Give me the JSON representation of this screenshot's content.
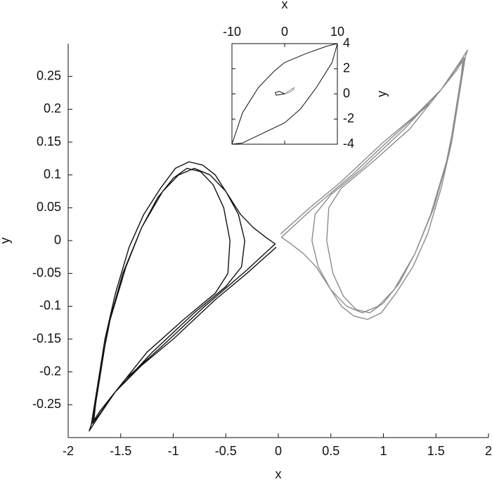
{
  "chart_data": [
    {
      "type": "line",
      "x_label": "x",
      "y_label": "y",
      "xlim": [
        -2,
        2
      ],
      "xticks": [
        -2,
        -1.5,
        -1,
        -0.5,
        0,
        0.5,
        1,
        1.5,
        2
      ],
      "ylim": [
        -0.3,
        0.3
      ],
      "yticks": [
        -0.25,
        -0.2,
        -0.15,
        -0.1,
        -0.05,
        0,
        0.05,
        0.1,
        0.15,
        0.2,
        0.25
      ],
      "series": [
        {
          "color": "#111111",
          "x": [
            -0.02,
            -0.3,
            -0.6,
            -1.0,
            -1.3,
            -1.55,
            -1.72,
            -1.8,
            -1.78,
            -1.72,
            -1.65,
            -1.55,
            -1.42,
            -1.28,
            -1.12,
            -0.98,
            -0.85,
            -0.72,
            -0.6,
            -0.48,
            -0.36,
            -0.24,
            -0.12,
            -0.03,
            -0.3,
            -0.7,
            -1.1,
            -1.45,
            -1.7,
            -1.78,
            -1.76,
            -1.7,
            -1.6,
            -1.45,
            -1.3,
            -1.15,
            -1.0,
            -0.87,
            -0.74,
            -0.62,
            -0.52,
            -0.46,
            -0.48,
            -0.6,
            -0.9,
            -1.25,
            -1.6,
            -1.76,
            -1.74,
            -1.62,
            -1.48,
            -1.3,
            -1.1,
            -0.95,
            -0.8,
            -0.65,
            -0.5,
            -0.38,
            -0.32,
            -0.35,
            -0.5,
            -0.8,
            -1.2,
            -1.55,
            -1.75
          ],
          "values": [
            -0.01,
            -0.05,
            -0.09,
            -0.15,
            -0.19,
            -0.23,
            -0.27,
            -0.29,
            -0.28,
            -0.22,
            -0.15,
            -0.08,
            -0.01,
            0.04,
            0.08,
            0.11,
            0.12,
            0.115,
            0.1,
            0.07,
            0.04,
            0.02,
            0.005,
            -0.005,
            -0.045,
            -0.1,
            -0.16,
            -0.21,
            -0.26,
            -0.28,
            -0.27,
            -0.2,
            -0.12,
            -0.04,
            0.02,
            0.065,
            0.095,
            0.11,
            0.105,
            0.085,
            0.05,
            0.0,
            -0.05,
            -0.08,
            -0.12,
            -0.17,
            -0.24,
            -0.28,
            -0.25,
            -0.13,
            -0.05,
            0.02,
            0.075,
            0.1,
            0.11,
            0.1,
            0.075,
            0.04,
            0.0,
            -0.04,
            -0.07,
            -0.11,
            -0.17,
            -0.23,
            -0.275
          ]
        },
        {
          "color": "#8c8c8c",
          "x": [
            0.02,
            0.3,
            0.6,
            1.0,
            1.3,
            1.55,
            1.72,
            1.8,
            1.78,
            1.72,
            1.65,
            1.55,
            1.42,
            1.28,
            1.12,
            0.98,
            0.85,
            0.72,
            0.6,
            0.48,
            0.36,
            0.24,
            0.12,
            0.03,
            0.3,
            0.7,
            1.1,
            1.45,
            1.7,
            1.78,
            1.76,
            1.7,
            1.6,
            1.45,
            1.3,
            1.15,
            1.0,
            0.87,
            0.74,
            0.62,
            0.52,
            0.46,
            0.48,
            0.6,
            0.9,
            1.25,
            1.6,
            1.76,
            1.74,
            1.62,
            1.48,
            1.3,
            1.1,
            0.95,
            0.8,
            0.65,
            0.5,
            0.38,
            0.32,
            0.35,
            0.5,
            0.8,
            1.2,
            1.55,
            1.75
          ],
          "values": [
            0.01,
            0.05,
            0.09,
            0.15,
            0.19,
            0.23,
            0.27,
            0.29,
            0.28,
            0.22,
            0.15,
            0.08,
            0.01,
            -0.04,
            -0.08,
            -0.11,
            -0.12,
            -0.115,
            -0.1,
            -0.07,
            -0.04,
            -0.02,
            -0.005,
            0.005,
            0.045,
            0.1,
            0.16,
            0.21,
            0.26,
            0.28,
            0.27,
            0.2,
            0.12,
            0.04,
            -0.02,
            -0.065,
            -0.095,
            -0.11,
            -0.105,
            -0.085,
            -0.05,
            0.0,
            0.05,
            0.08,
            0.12,
            0.17,
            0.24,
            0.28,
            0.25,
            0.13,
            0.05,
            -0.02,
            -0.075,
            -0.1,
            -0.11,
            -0.1,
            -0.075,
            -0.04,
            0.0,
            0.04,
            0.07,
            0.11,
            0.17,
            0.23,
            0.275
          ]
        }
      ]
    },
    {
      "type": "line",
      "x_label": "x",
      "y_label": "y",
      "xlim": [
        -10,
        10
      ],
      "xticks": [
        -10,
        0,
        10
      ],
      "ylim": [
        -4,
        4
      ],
      "yticks": [
        -4,
        -2,
        0,
        2,
        4
      ],
      "series": [
        {
          "color": "#111111",
          "x": [
            -10,
            -8,
            -5,
            -2,
            0,
            4,
            8,
            10,
            9,
            6,
            3,
            0,
            -4,
            -8,
            -10
          ],
          "values": [
            -4,
            -1.5,
            0.5,
            1.8,
            2.5,
            3.2,
            3.8,
            4,
            2.5,
            0.5,
            -1.2,
            -2.3,
            -3.1,
            -3.9,
            -4
          ]
        },
        {
          "color": "#111111",
          "x": [
            0,
            -1,
            -1.8,
            -1.6,
            -0.8,
            0
          ],
          "values": [
            0,
            0.2,
            0.1,
            -0.1,
            -0.05,
            0
          ]
        },
        {
          "color": "#8c8c8c",
          "x": [
            0,
            1,
            1.8,
            1.6,
            0.8,
            0
          ],
          "values": [
            0,
            0.3,
            0.5,
            0.3,
            0.1,
            0
          ]
        }
      ]
    }
  ]
}
